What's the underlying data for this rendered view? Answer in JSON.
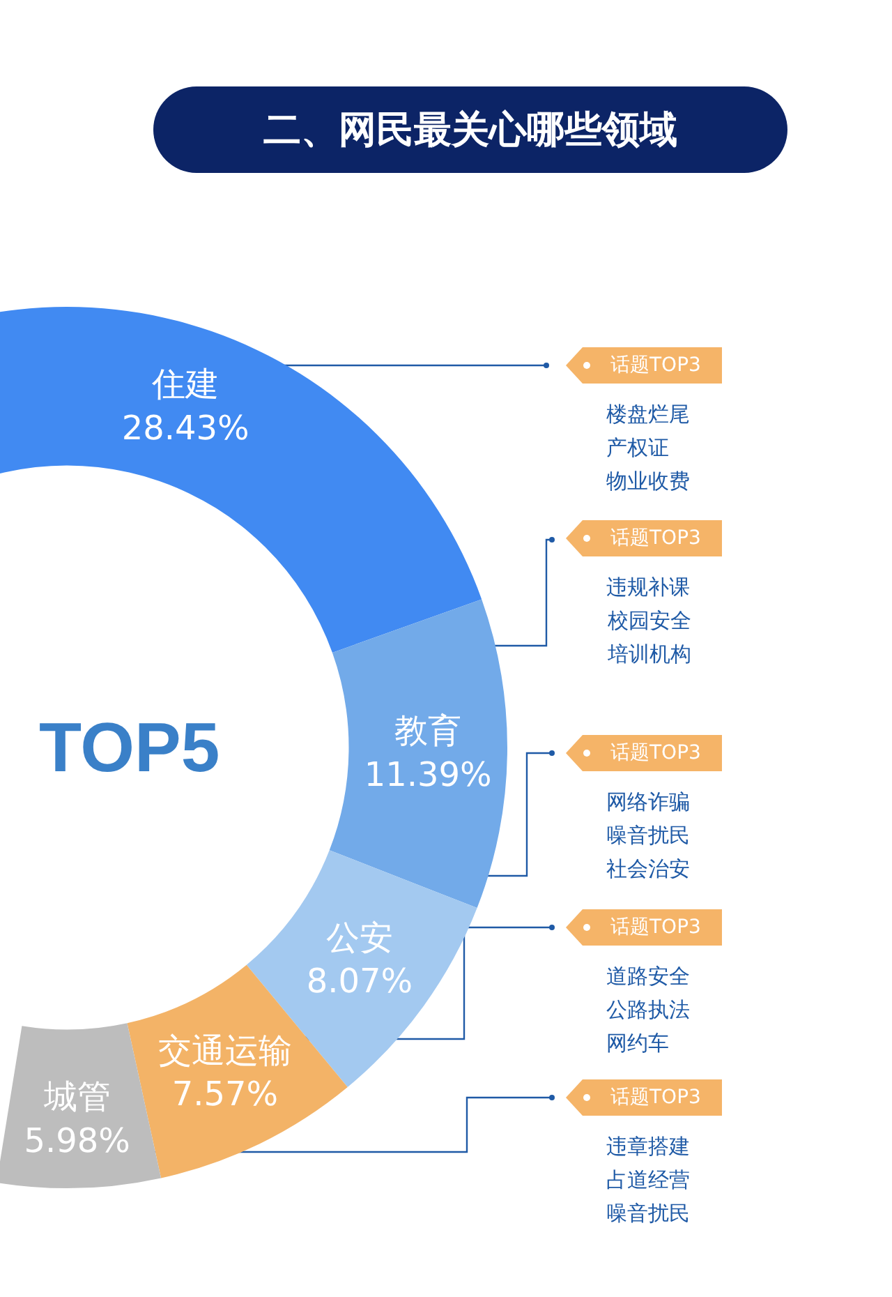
{
  "chart_data": {
    "type": "donut",
    "title": "二、网民最关心哪些领域",
    "categories": [
      "住建",
      "教育",
      "公安",
      "交通运输",
      "城管"
    ],
    "values": [
      28.43,
      11.39,
      8.07,
      7.57,
      5.98
    ],
    "value_labels": [
      "28.43%",
      "11.39%",
      "8.07%",
      "7.57%",
      "5.98%"
    ],
    "colors": [
      "#418af2",
      "#72aae9",
      "#a3c9f0",
      "#f3b367",
      "#bdbdbd"
    ],
    "legend": false,
    "annotations": [
      "TOP5",
      "话题TOP3",
      "楼盘烂尾",
      "产权证",
      "物业收费",
      "话题TOP3",
      "违规补课",
      "校园安全",
      "培训机构",
      "话题TOP3",
      "网络诈骗",
      "噪音扰民",
      "社会治安",
      "话题TOP3",
      "道路安全",
      "公路执法",
      "网约车",
      "话题TOP3",
      "违章搭建",
      "占道经营",
      "噪音扰民"
    ]
  }
}
